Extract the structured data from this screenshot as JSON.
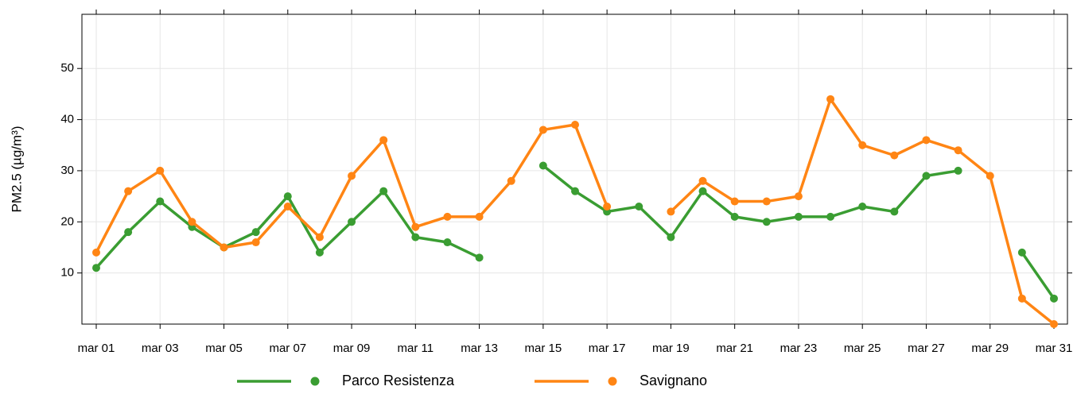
{
  "chart_data": {
    "type": "line",
    "y_label": "PM2.5 (µg/m³)",
    "categories": [
      "mar 01",
      null,
      "mar 03",
      null,
      "mar 05",
      null,
      "mar 07",
      null,
      "mar 09",
      null,
      "mar 11",
      null,
      "mar 13",
      null,
      "mar 15",
      null,
      "mar 17",
      null,
      "mar 19",
      null,
      "mar 21",
      null,
      "mar 23",
      null,
      "mar 25",
      null,
      "mar 27",
      null,
      "mar 29",
      null,
      "mar 31"
    ],
    "series": [
      {
        "name": "Parco Resistenza",
        "color": "#3a9d32",
        "values": [
          11,
          18,
          24,
          19,
          15,
          18,
          25,
          14,
          20,
          26,
          17,
          16,
          13,
          null,
          31,
          26,
          22,
          23,
          17,
          26,
          21,
          20,
          21,
          21,
          23,
          22,
          29,
          30,
          null,
          14,
          5
        ]
      },
      {
        "name": "Savignano",
        "color": "#ff8514",
        "values": [
          14,
          26,
          30,
          20,
          15,
          16,
          23,
          17,
          29,
          36,
          19,
          21,
          21,
          28,
          38,
          39,
          23,
          null,
          22,
          28,
          24,
          24,
          25,
          44,
          35,
          33,
          36,
          34,
          29,
          5,
          0
        ]
      }
    ],
    "ylim": [
      0,
      60.6
    ],
    "yticks": [
      10,
      20,
      30,
      40,
      50
    ],
    "grid": true
  }
}
